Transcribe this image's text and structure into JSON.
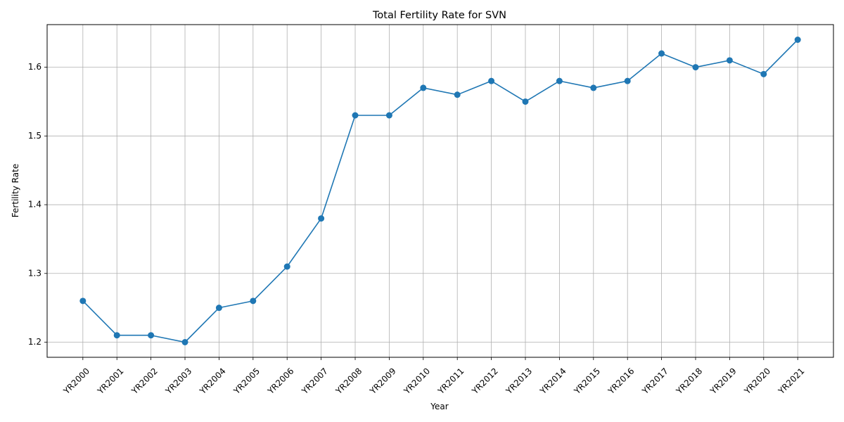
{
  "chart_data": {
    "type": "line",
    "title": "Total Fertility Rate for SVN",
    "xlabel": "Year",
    "ylabel": "Fertility Rate",
    "categories": [
      "YR2000",
      "YR2001",
      "YR2002",
      "YR2003",
      "YR2004",
      "YR2005",
      "YR2006",
      "YR2007",
      "YR2008",
      "YR2009",
      "YR2010",
      "YR2011",
      "YR2012",
      "YR2013",
      "YR2014",
      "YR2015",
      "YR2016",
      "YR2017",
      "YR2018",
      "YR2019",
      "YR2020",
      "YR2021"
    ],
    "series": [
      {
        "values": [
          1.26,
          1.21,
          1.21,
          1.2,
          1.25,
          1.26,
          1.31,
          1.38,
          1.53,
          1.53,
          1.57,
          1.56,
          1.58,
          1.55,
          1.58,
          1.57,
          1.58,
          1.62,
          1.6,
          1.61,
          1.59,
          1.64
        ],
        "color": "#1f77b4",
        "marker": "circle"
      }
    ],
    "yticks": [
      1.2,
      1.3,
      1.4,
      1.5,
      1.6
    ],
    "ytick_labels": [
      "1.2",
      "1.3",
      "1.4",
      "1.5",
      "1.6"
    ],
    "ylim": [
      1.178,
      1.662
    ],
    "grid": true,
    "xtick_rotation": 45
  }
}
